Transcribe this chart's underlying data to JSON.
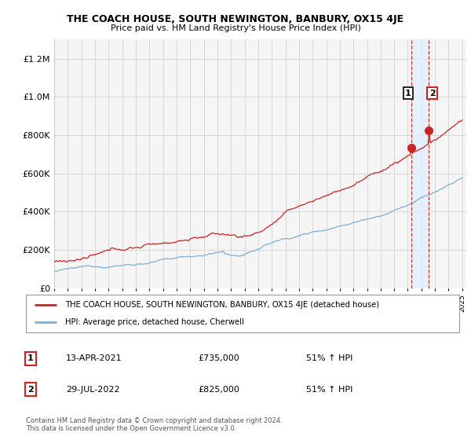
{
  "title": "THE COACH HOUSE, SOUTH NEWINGTON, BANBURY, OX15 4JE",
  "subtitle": "Price paid vs. HM Land Registry's House Price Index (HPI)",
  "legend_line1": "THE COACH HOUSE, SOUTH NEWINGTON, BANBURY, OX15 4JE (detached house)",
  "legend_line2": "HPI: Average price, detached house, Cherwell",
  "transaction1_date": "13-APR-2021",
  "transaction1_price": "£735,000",
  "transaction1_pct": "51% ↑ HPI",
  "transaction2_date": "29-JUL-2022",
  "transaction2_price": "£825,000",
  "transaction2_pct": "51% ↑ HPI",
  "footer": "Contains HM Land Registry data © Crown copyright and database right 2024.\nThis data is licensed under the Open Government Licence v3.0.",
  "hpi_color": "#7bafd4",
  "price_color": "#cc2222",
  "vline_color": "#cc2222",
  "shade_color": "#ddeeff",
  "background_chart": "#f5f5f5",
  "grid_color": "#cccccc",
  "ylim": [
    0,
    1300000
  ],
  "yticks": [
    0,
    200000,
    400000,
    600000,
    800000,
    1000000,
    1200000
  ],
  "t1_year": 2021.28,
  "t2_year": 2022.55,
  "t1_price": 735000,
  "t2_price": 825000
}
